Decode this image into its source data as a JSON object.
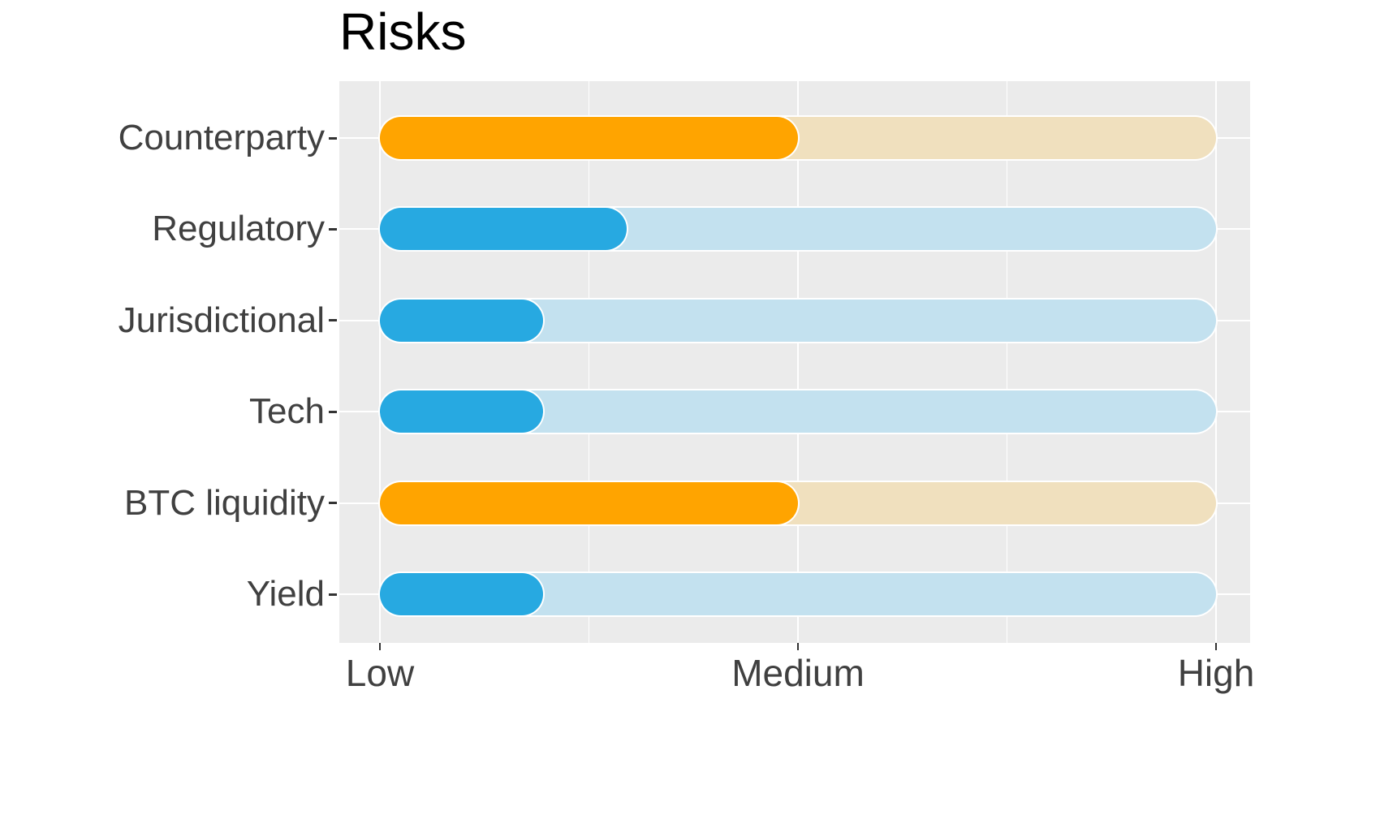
{
  "chart_data": {
    "type": "bar",
    "orientation": "horizontal",
    "title": "Risks",
    "categories": [
      "Counterparty",
      "Regulatory",
      "Jurisdictional",
      "Tech",
      "BTC liquidity",
      "Yield"
    ],
    "values": [
      0.5,
      0.295,
      0.195,
      0.195,
      0.5,
      0.195
    ],
    "series_colors": [
      "orange",
      "blue",
      "blue",
      "blue",
      "orange",
      "blue"
    ],
    "x_ticks": [
      "Low",
      "Medium",
      "High"
    ],
    "x_tick_positions": [
      0,
      0.5,
      1
    ],
    "minor_tick_positions": [
      0.25,
      0.75
    ],
    "xlim": [
      0,
      1
    ],
    "track_style": "full-range pale background bar per row",
    "legend": "none",
    "grid": "on",
    "palette": {
      "orange": "#FFA400",
      "orange_track": "#F0E0BE",
      "blue": "#27A9E1",
      "blue_track": "#C3E1EF",
      "plot_background": "#EBEBEB",
      "gridline": "#FFFFFF",
      "axis_text": "#404040",
      "title_text": "#000000",
      "tick_mark": "#333333"
    }
  }
}
